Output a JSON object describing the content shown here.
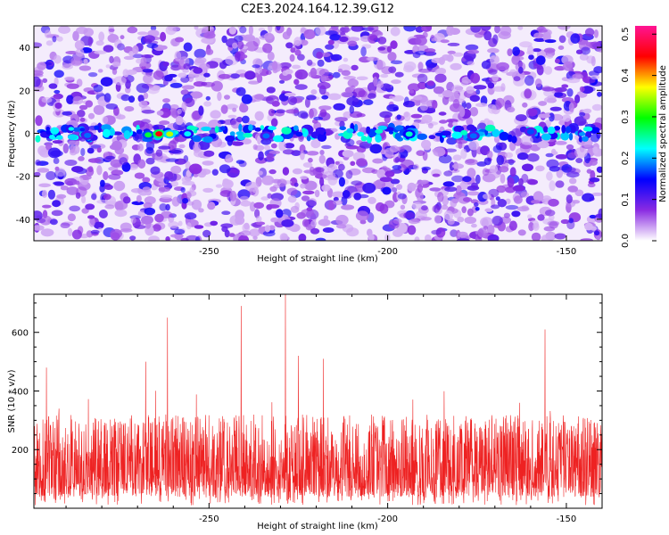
{
  "title": "C2E3.2024.164.12.39.G12",
  "chart_data": [
    {
      "type": "heatmap",
      "xlabel": "Height of straight line (km)",
      "ylabel": "Frequency (Hz)",
      "xlim": [
        -299,
        -140
      ],
      "ylim": [
        -50,
        50
      ],
      "xticks": [
        -250,
        -200,
        -150
      ],
      "yticks": [
        -40,
        -20,
        0,
        20,
        40
      ],
      "colorbar": {
        "label": "Normalized spectral amplitude",
        "range": [
          0,
          0.52
        ],
        "ticks": [
          "0.0",
          "0.1",
          "0.2",
          "0.3",
          "0.4",
          "0.5"
        ],
        "colormap": [
          "#ffffff",
          "#8a2be2",
          "#0000ff",
          "#00ffff",
          "#00ff00",
          "#ffff00",
          "#ff0000",
          "#ff1493"
        ]
      },
      "signal_band_hz": 0,
      "hotspots": [
        {
          "x": -267,
          "amp": 0.28
        },
        {
          "x": -264,
          "amp": 0.45
        },
        {
          "x": -261,
          "amp": 0.35
        },
        {
          "x": -256,
          "amp": 0.22
        },
        {
          "x": -284,
          "amp": 0.18
        },
        {
          "x": -194,
          "amp": 0.24
        },
        {
          "x": -176,
          "amp": 0.18
        },
        {
          "x": -160,
          "amp": 0.17
        },
        {
          "x": -234,
          "amp": 0.18
        }
      ]
    },
    {
      "type": "line",
      "xlabel": "Height of straight line (km)",
      "ylabel": "SNR (10 * v/v)",
      "xlim": [
        -299,
        -140
      ],
      "ylim": [
        0,
        730
      ],
      "xticks": [
        -250,
        -200,
        -150
      ],
      "yticks": [
        200,
        400,
        600
      ],
      "color": "#ee2222",
      "typical_range": [
        40,
        320
      ],
      "peaks": [
        {
          "x": -261.6,
          "y": 650
        },
        {
          "x": -241.0,
          "y": 690
        },
        {
          "x": -228.6,
          "y": 730
        },
        {
          "x": -156.0,
          "y": 610
        },
        {
          "x": -295.5,
          "y": 480
        },
        {
          "x": -267.7,
          "y": 500
        },
        {
          "x": -225.0,
          "y": 520
        },
        {
          "x": -218.0,
          "y": 510
        }
      ]
    }
  ]
}
